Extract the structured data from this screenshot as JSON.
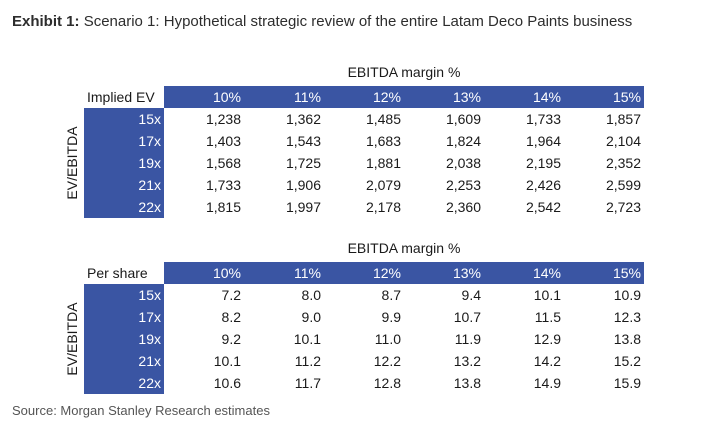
{
  "header": {
    "label": "Exhibit 1:",
    "title": "Scenario 1: Hypothetical strategic review of the entire Latam Deco Paints business"
  },
  "tables": [
    {
      "corner_label": "Implied EV",
      "column_title": "EBITDA margin %",
      "row_title": "EV/EBITDA",
      "columns": [
        "10%",
        "11%",
        "12%",
        "13%",
        "14%",
        "15%"
      ],
      "rows": [
        {
          "label": "15x",
          "values": [
            "1,238",
            "1,362",
            "1,485",
            "1,609",
            "1,733",
            "1,857"
          ]
        },
        {
          "label": "17x",
          "values": [
            "1,403",
            "1,543",
            "1,683",
            "1,824",
            "1,964",
            "2,104"
          ]
        },
        {
          "label": "19x",
          "values": [
            "1,568",
            "1,725",
            "1,881",
            "2,038",
            "2,195",
            "2,352"
          ]
        },
        {
          "label": "21x",
          "values": [
            "1,733",
            "1,906",
            "2,079",
            "2,253",
            "2,426",
            "2,599"
          ]
        },
        {
          "label": "22x",
          "values": [
            "1,815",
            "1,997",
            "2,178",
            "2,360",
            "2,542",
            "2,723"
          ]
        }
      ]
    },
    {
      "corner_label": "Per share",
      "column_title": "EBITDA margin %",
      "row_title": "EV/EBITDA",
      "columns": [
        "10%",
        "11%",
        "12%",
        "13%",
        "14%",
        "15%"
      ],
      "rows": [
        {
          "label": "15x",
          "values": [
            "7.2",
            "8.0",
            "8.7",
            "9.4",
            "10.1",
            "10.9"
          ]
        },
        {
          "label": "17x",
          "values": [
            "8.2",
            "9.0",
            "9.9",
            "10.7",
            "11.5",
            "12.3"
          ]
        },
        {
          "label": "19x",
          "values": [
            "9.2",
            "10.1",
            "11.0",
            "11.9",
            "12.9",
            "13.8"
          ]
        },
        {
          "label": "21x",
          "values": [
            "10.1",
            "11.2",
            "12.2",
            "13.2",
            "14.2",
            "15.2"
          ]
        },
        {
          "label": "22x",
          "values": [
            "10.6",
            "11.7",
            "12.8",
            "13.8",
            "14.9",
            "15.9"
          ]
        }
      ]
    }
  ],
  "source": "Source: Morgan Stanley Research estimates",
  "colors": {
    "header_fill": "#3a55a3",
    "header_text": "#ffffff",
    "body_text": "#1a1a1a"
  }
}
